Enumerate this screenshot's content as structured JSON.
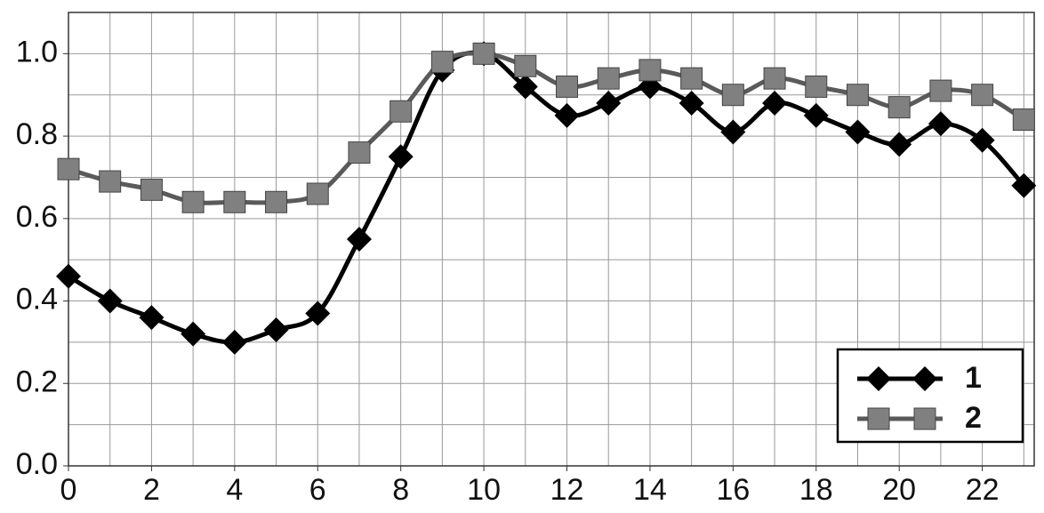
{
  "chart_data": {
    "type": "line",
    "x": [
      0,
      1,
      2,
      3,
      4,
      5,
      6,
      7,
      8,
      9,
      10,
      11,
      12,
      13,
      14,
      15,
      16,
      17,
      18,
      19,
      20,
      21,
      22,
      23
    ],
    "series": [
      {
        "name": "1",
        "color": "#000000",
        "marker": "diamond",
        "values": [
          0.46,
          0.4,
          0.36,
          0.32,
          0.3,
          0.33,
          0.37,
          0.55,
          0.75,
          0.96,
          1.0,
          0.92,
          0.85,
          0.88,
          0.92,
          0.88,
          0.81,
          0.88,
          0.85,
          0.81,
          0.78,
          0.83,
          0.79,
          0.68
        ]
      },
      {
        "name": "2",
        "color": "#5a5a5a",
        "marker_color": "#808080",
        "marker": "square",
        "values": [
          0.72,
          0.69,
          0.67,
          0.64,
          0.64,
          0.64,
          0.66,
          0.76,
          0.86,
          0.98,
          1.0,
          0.97,
          0.92,
          0.94,
          0.96,
          0.94,
          0.9,
          0.94,
          0.92,
          0.9,
          0.87,
          0.91,
          0.9,
          0.84
        ]
      }
    ],
    "smooth": true,
    "xlim": [
      0,
      23.25
    ],
    "ylim": [
      0,
      1.1
    ],
    "xticks": [
      0,
      2,
      4,
      6,
      8,
      10,
      12,
      14,
      16,
      18,
      20,
      22
    ],
    "yticks": [
      {
        "value": 0,
        "label": "0.0"
      },
      {
        "value": 0.2,
        "label": "0.2"
      },
      {
        "value": 0.4,
        "label": "0.4"
      },
      {
        "value": 0.6,
        "label": "0.6"
      },
      {
        "value": 0.8,
        "label": "0.8"
      },
      {
        "value": 1.0,
        "label": "1.0"
      }
    ],
    "xgrid": [
      0,
      1,
      2,
      3,
      4,
      5,
      6,
      7,
      8,
      9,
      10,
      11,
      12,
      13,
      14,
      15,
      16,
      17,
      18,
      19,
      20,
      21,
      22,
      23
    ],
    "ygrid": [
      0.1,
      0.2,
      0.3,
      0.4,
      0.5,
      0.6,
      0.7,
      0.8,
      0.9,
      1.0,
      1.1
    ],
    "grid": true,
    "legend": "lower right"
  }
}
